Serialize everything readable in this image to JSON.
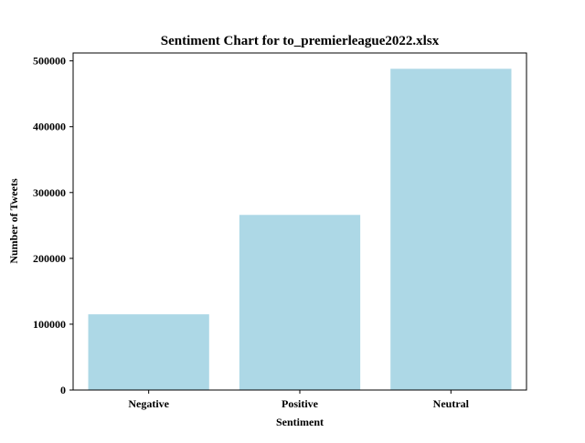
{
  "chart_data": {
    "type": "bar",
    "title": "Sentiment Chart for to_premierleague2022.xlsx",
    "xlabel": "Sentiment",
    "ylabel": "Number of Tweets",
    "categories": [
      "Negative",
      "Positive",
      "Neutral"
    ],
    "values": [
      115000,
      266000,
      488000
    ],
    "ylim": [
      0,
      512000
    ],
    "yticks": [
      0,
      100000,
      200000,
      300000,
      400000,
      500000
    ],
    "ytick_labels": [
      "0",
      "100000",
      "200000",
      "300000",
      "400000",
      "500000"
    ],
    "bar_color": "#add8e6",
    "grid": false,
    "legend": "none"
  }
}
